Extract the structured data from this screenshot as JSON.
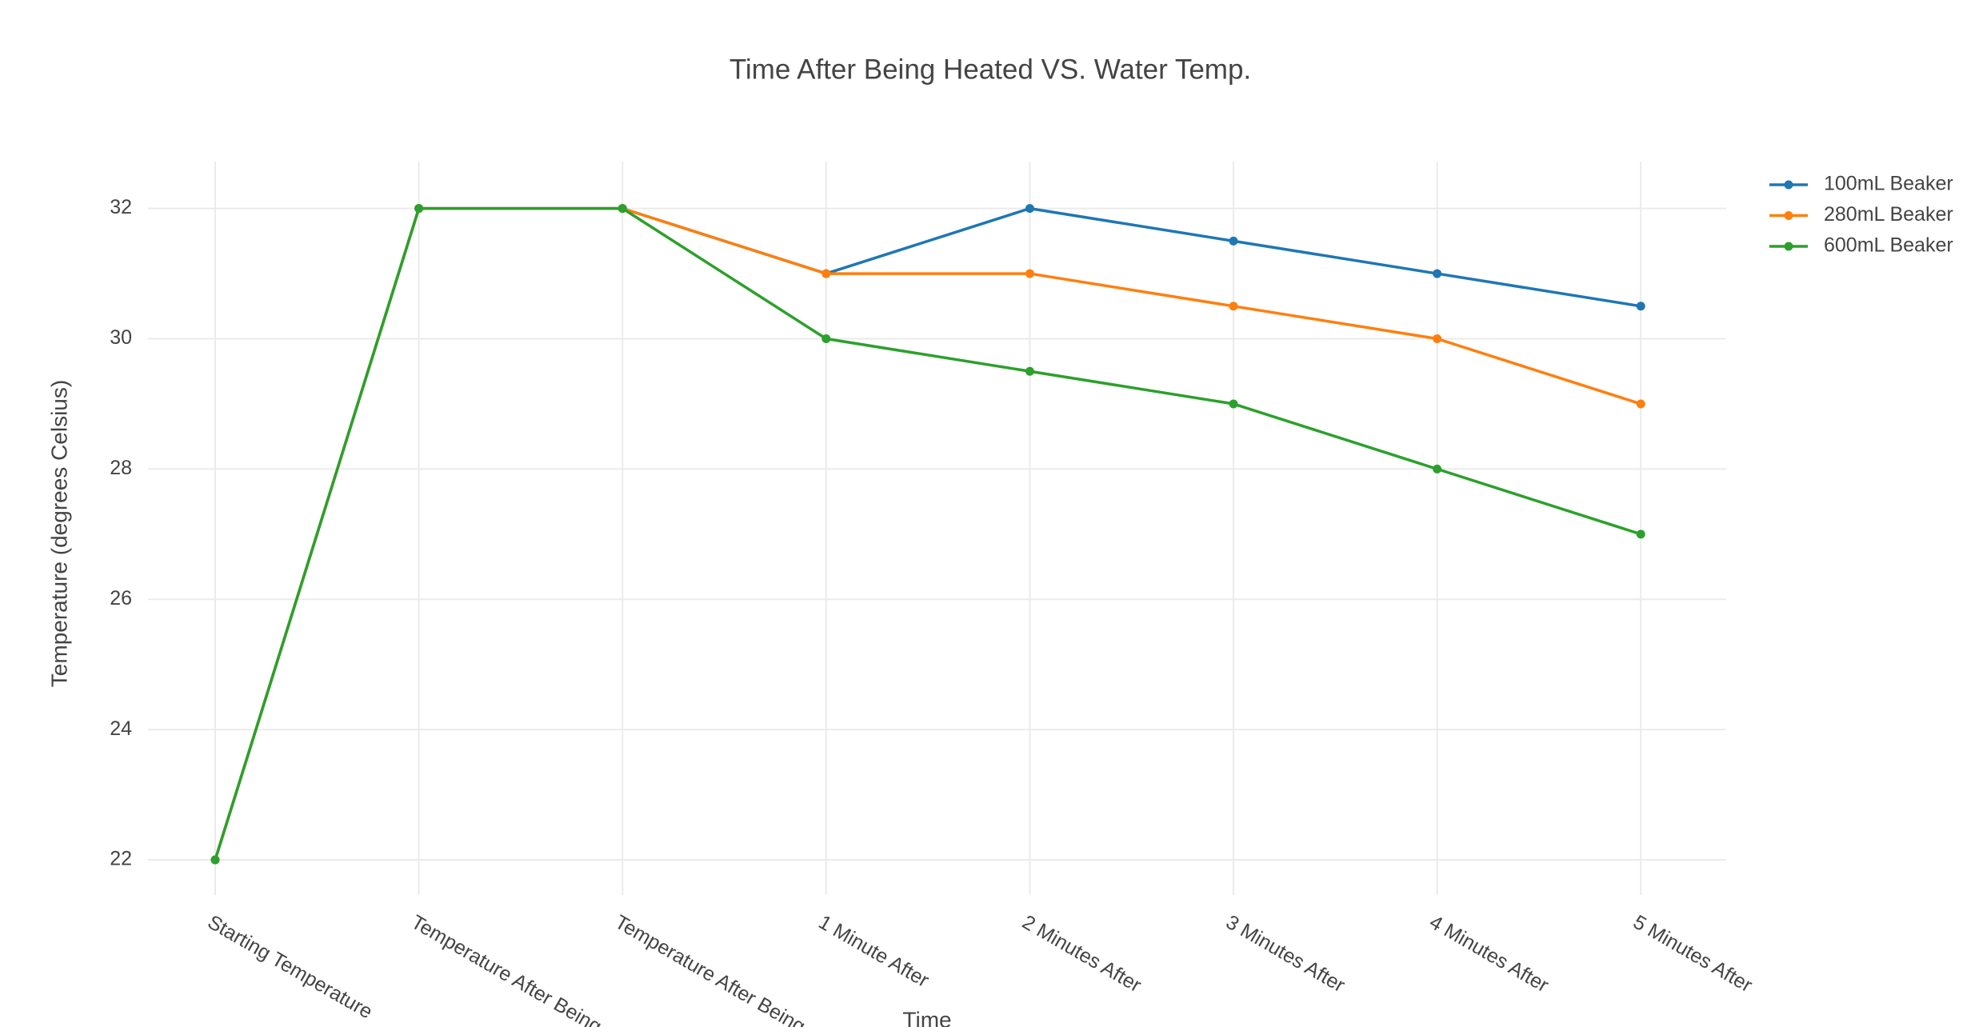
{
  "chart_data": {
    "type": "line",
    "title": "Time After Being Heated VS. Water Temp.",
    "x_label": "Time",
    "y_label": "Temperature (degrees Celsius)",
    "categories": [
      "Starting Temperature",
      "Temperature After Being",
      "Temperature After Being",
      "1 Minute After",
      "2 Minutes After",
      "3 Minutes After",
      "4 Minutes After",
      "5 Minutes After"
    ],
    "series": [
      {
        "name": "100mL Beaker",
        "color": "#1f77b4",
        "values": [
          22,
          32,
          32,
          31,
          32,
          31.5,
          31,
          30.5
        ]
      },
      {
        "name": "280mL Beaker",
        "color": "#ff7f0e",
        "values": [
          22,
          32,
          32,
          31,
          31,
          30.5,
          30,
          29
        ]
      },
      {
        "name": "600mL Beaker",
        "color": "#2ca02c",
        "values": [
          22,
          32,
          32,
          30,
          29.5,
          29,
          28,
          27
        ]
      }
    ],
    "ylim": [
      21.46,
      32.72
    ],
    "yticks": [
      22,
      24,
      26,
      28,
      30,
      32
    ],
    "grid": true,
    "legend": "right"
  }
}
